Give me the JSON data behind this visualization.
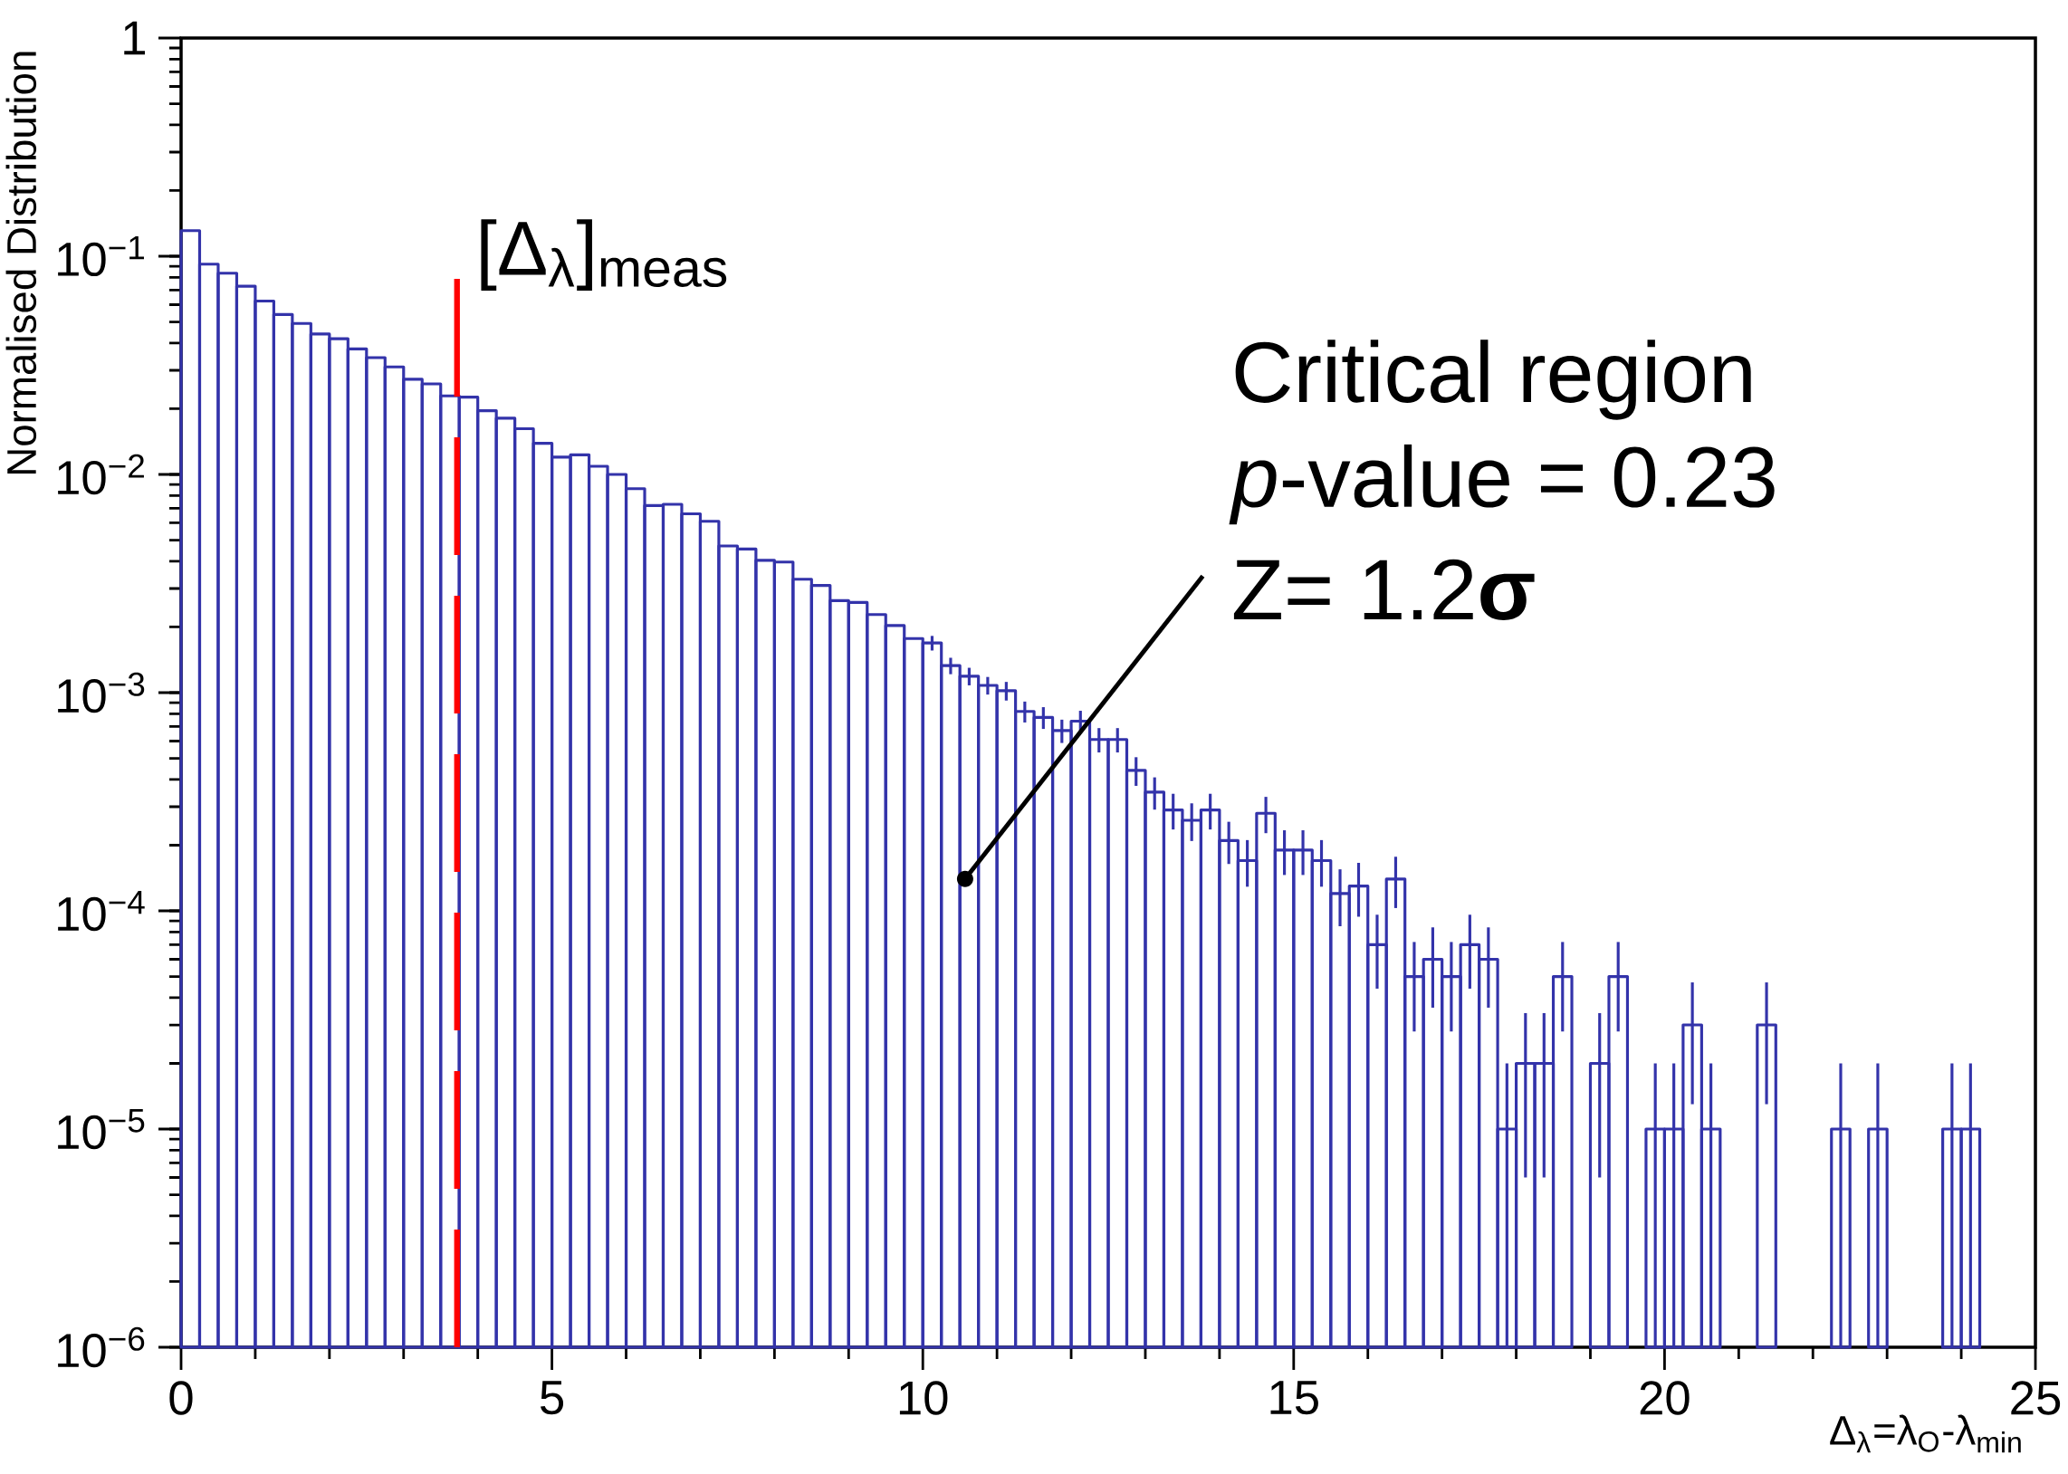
{
  "chart_data": {
    "type": "histogram",
    "xlabel": "Δ$_{λ}$=λ$_{O}$-λ$_{min}$",
    "ylabel": "Normalised Distribution",
    "color": "#3333aa",
    "log": true,
    "xlim": [
      0,
      25
    ],
    "xticks": [
      0,
      5,
      10,
      15,
      20,
      25
    ],
    "ylim": [
      1e-06,
      1
    ],
    "yticks": [
      {
        "value": 1e-06,
        "label": "10$^{−6}$"
      },
      {
        "value": 1e-05,
        "label": "10$^{−5}$"
      },
      {
        "value": 0.0001,
        "label": "10$^{−4}$"
      },
      {
        "value": 0.001,
        "label": "10$^{−3}$"
      },
      {
        "value": 0.01,
        "label": "10$^{−2}$"
      },
      {
        "value": 0.1,
        "label": "10$^{−1}$"
      },
      1
    ],
    "bins": [
      0,
      0.25,
      0.5,
      0.75,
      1,
      1.25,
      1.5,
      1.75,
      2,
      2.25,
      2.5,
      2.75,
      3,
      3.25,
      3.5,
      3.75,
      4,
      4.25,
      4.5,
      4.75,
      5,
      5.25,
      5.5,
      5.75,
      6,
      6.25,
      6.5,
      6.75,
      7,
      7.25,
      7.5,
      7.75,
      8,
      8.25,
      8.5,
      8.75,
      9,
      9.25,
      9.5,
      9.75,
      10,
      10.25,
      10.5,
      10.75,
      11,
      11.25,
      11.5,
      11.75,
      12,
      12.25,
      12.5,
      12.75,
      13,
      13.25,
      13.5,
      13.75,
      14,
      14.25,
      14.5,
      14.75,
      15,
      15.25,
      15.5,
      15.75,
      16,
      16.25,
      16.5,
      16.75,
      17,
      17.25,
      17.5,
      17.75,
      18,
      18.25,
      18.5,
      18.75,
      19,
      19.25,
      19.5,
      19.75,
      20,
      20.25,
      20.5,
      20.75,
      21,
      21.25,
      21.5,
      21.75,
      22,
      22.25,
      22.5,
      22.75,
      23,
      23.25,
      23.5,
      23.75,
      24,
      24.25,
      24.5,
      24.75,
      25
    ],
    "values": [
      0.131,
      0.092,
      0.0836,
      0.0729,
      0.0623,
      0.0541,
      0.0492,
      0.044,
      0.0419,
      0.0376,
      0.0343,
      0.0311,
      0.0273,
      0.026,
      0.0229,
      0.0226,
      0.0196,
      0.0181,
      0.0162,
      0.0139,
      0.012,
      0.0123,
      0.0109,
      0.01,
      0.0086,
      0.0072,
      0.0073,
      0.0066,
      0.0061,
      0.0047,
      0.00455,
      0.00404,
      0.00397,
      0.00331,
      0.0031,
      0.00264,
      0.00259,
      0.00228,
      0.00203,
      0.00177,
      0.00169,
      0.00133,
      0.00119,
      0.00108,
      0.00102,
      0.00082,
      0.00077,
      0.00067,
      0.00074,
      0.00061,
      0.00061,
      0.00044,
      0.00035,
      0.00029,
      0.00026,
      0.00029,
      0.00021,
      0.00017,
      0.00028,
      0.00019,
      0.00019,
      0.00017,
      0.00012,
      0.00013,
      7e-05,
      0.00014,
      5e-05,
      6e-05,
      5e-05,
      7e-05,
      6e-05,
      1e-05,
      2e-05,
      2e-05,
      5e-05,
      null,
      2e-05,
      5e-05,
      null,
      1e-05,
      1e-05,
      3e-05,
      1e-05,
      null,
      null,
      3e-05,
      null,
      null,
      null,
      1e-05,
      null,
      1e-05,
      null,
      null,
      null,
      1e-05,
      1e-05,
      null,
      null,
      null
    ],
    "errors": [
      null,
      null,
      null,
      null,
      null,
      null,
      null,
      null,
      null,
      null,
      null,
      null,
      null,
      null,
      null,
      null,
      null,
      null,
      null,
      null,
      null,
      null,
      null,
      null,
      null,
      null,
      null,
      null,
      null,
      null,
      null,
      null,
      null,
      null,
      null,
      null,
      null,
      null,
      null,
      null,
      0.00013,
      0.000115,
      0.00011,
      0.0001,
      0.0001,
      9e-05,
      8.8e-05,
      8.2e-05,
      8.6e-05,
      7.8e-05,
      7.8e-05,
      6.6e-05,
      5.9e-05,
      5.4e-05,
      5.1e-05,
      5.4e-05,
      4.6e-05,
      4.1e-05,
      5.3e-05,
      4.4e-05,
      4.4e-05,
      4.1e-05,
      3.5e-05,
      3.6e-05,
      2.6e-05,
      3.7e-05,
      2.2e-05,
      2.4e-05,
      2.2e-05,
      2.6e-05,
      2.4e-05,
      [
        1e-06,
        2e-05
      ],
      1.4e-05,
      1.4e-05,
      2.2e-05,
      null,
      1.4e-05,
      2.2e-05,
      null,
      [
        1e-06,
        2e-05
      ],
      [
        1e-06,
        2e-05
      ],
      1.7e-05,
      [
        1e-06,
        2e-05
      ],
      null,
      null,
      1.7e-05,
      null,
      null,
      null,
      [
        1e-06,
        2e-05
      ],
      null,
      [
        1e-06,
        2e-05
      ],
      null,
      null,
      null,
      [
        1e-06,
        2e-05
      ],
      [
        1e-06,
        2e-05
      ],
      null,
      null,
      null
    ],
    "ref_lines": [
      {
        "axis": "x",
        "value": 3.72,
        "label": "[Δ$_{λ}$]$_{meas}$",
        "color": "#ff0000",
        "line_style": "dashed"
      }
    ],
    "annotations": [
      "Critical region",
      "*p*-value = 0.23",
      {
        "text": "Z= 1.2**σ**",
        "x": 10.57,
        "y": 0.00014
      }
    ]
  }
}
